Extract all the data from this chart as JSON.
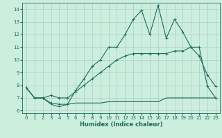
{
  "title": "",
  "xlabel": "Humidex (Indice chaleur)",
  "ylabel": "",
  "bg_color": "#cceedd",
  "line_color": "#1a6b5a",
  "xlim": [
    -0.5,
    23.5
  ],
  "ylim": [
    5.8,
    14.5
  ],
  "xticks": [
    0,
    1,
    2,
    3,
    4,
    5,
    6,
    7,
    8,
    9,
    10,
    11,
    12,
    13,
    14,
    15,
    16,
    17,
    18,
    19,
    20,
    21,
    22,
    23
  ],
  "yticks": [
    6,
    7,
    8,
    9,
    10,
    11,
    12,
    13,
    14
  ],
  "grid_color": "#aacccc",
  "line1_x": [
    0,
    1,
    2,
    3,
    4,
    5,
    6,
    7,
    8,
    9,
    10,
    11,
    12,
    13,
    14,
    15,
    16,
    17,
    18,
    19,
    20,
    21,
    22,
    23
  ],
  "line1_y": [
    7.8,
    7.0,
    7.0,
    6.6,
    6.5,
    6.5,
    7.6,
    8.5,
    9.5,
    10.0,
    11.0,
    11.0,
    12.0,
    13.2,
    13.9,
    12.0,
    14.3,
    11.7,
    13.2,
    12.2,
    11.0,
    10.3,
    8.8,
    7.9
  ],
  "line2_x": [
    0,
    1,
    2,
    3,
    4,
    5,
    6,
    7,
    8,
    9,
    10,
    11,
    12,
    13,
    14,
    15,
    16,
    17,
    18,
    19,
    20,
    21,
    22,
    23
  ],
  "line2_y": [
    7.8,
    7.0,
    7.0,
    7.2,
    7.0,
    7.0,
    7.5,
    8.0,
    8.5,
    9.0,
    9.5,
    10.0,
    10.3,
    10.5,
    10.5,
    10.5,
    10.5,
    10.5,
    10.7,
    10.7,
    11.0,
    11.0,
    7.9,
    7.0
  ],
  "line3_x": [
    0,
    1,
    2,
    3,
    4,
    5,
    6,
    7,
    8,
    9,
    10,
    11,
    12,
    13,
    14,
    15,
    16,
    17,
    18,
    19,
    20,
    21,
    22,
    23
  ],
  "line3_y": [
    7.8,
    7.0,
    7.0,
    6.5,
    6.3,
    6.5,
    6.6,
    6.6,
    6.6,
    6.6,
    6.7,
    6.7,
    6.7,
    6.7,
    6.7,
    6.7,
    6.7,
    7.0,
    7.0,
    7.0,
    7.0,
    7.0,
    7.0,
    7.0
  ]
}
